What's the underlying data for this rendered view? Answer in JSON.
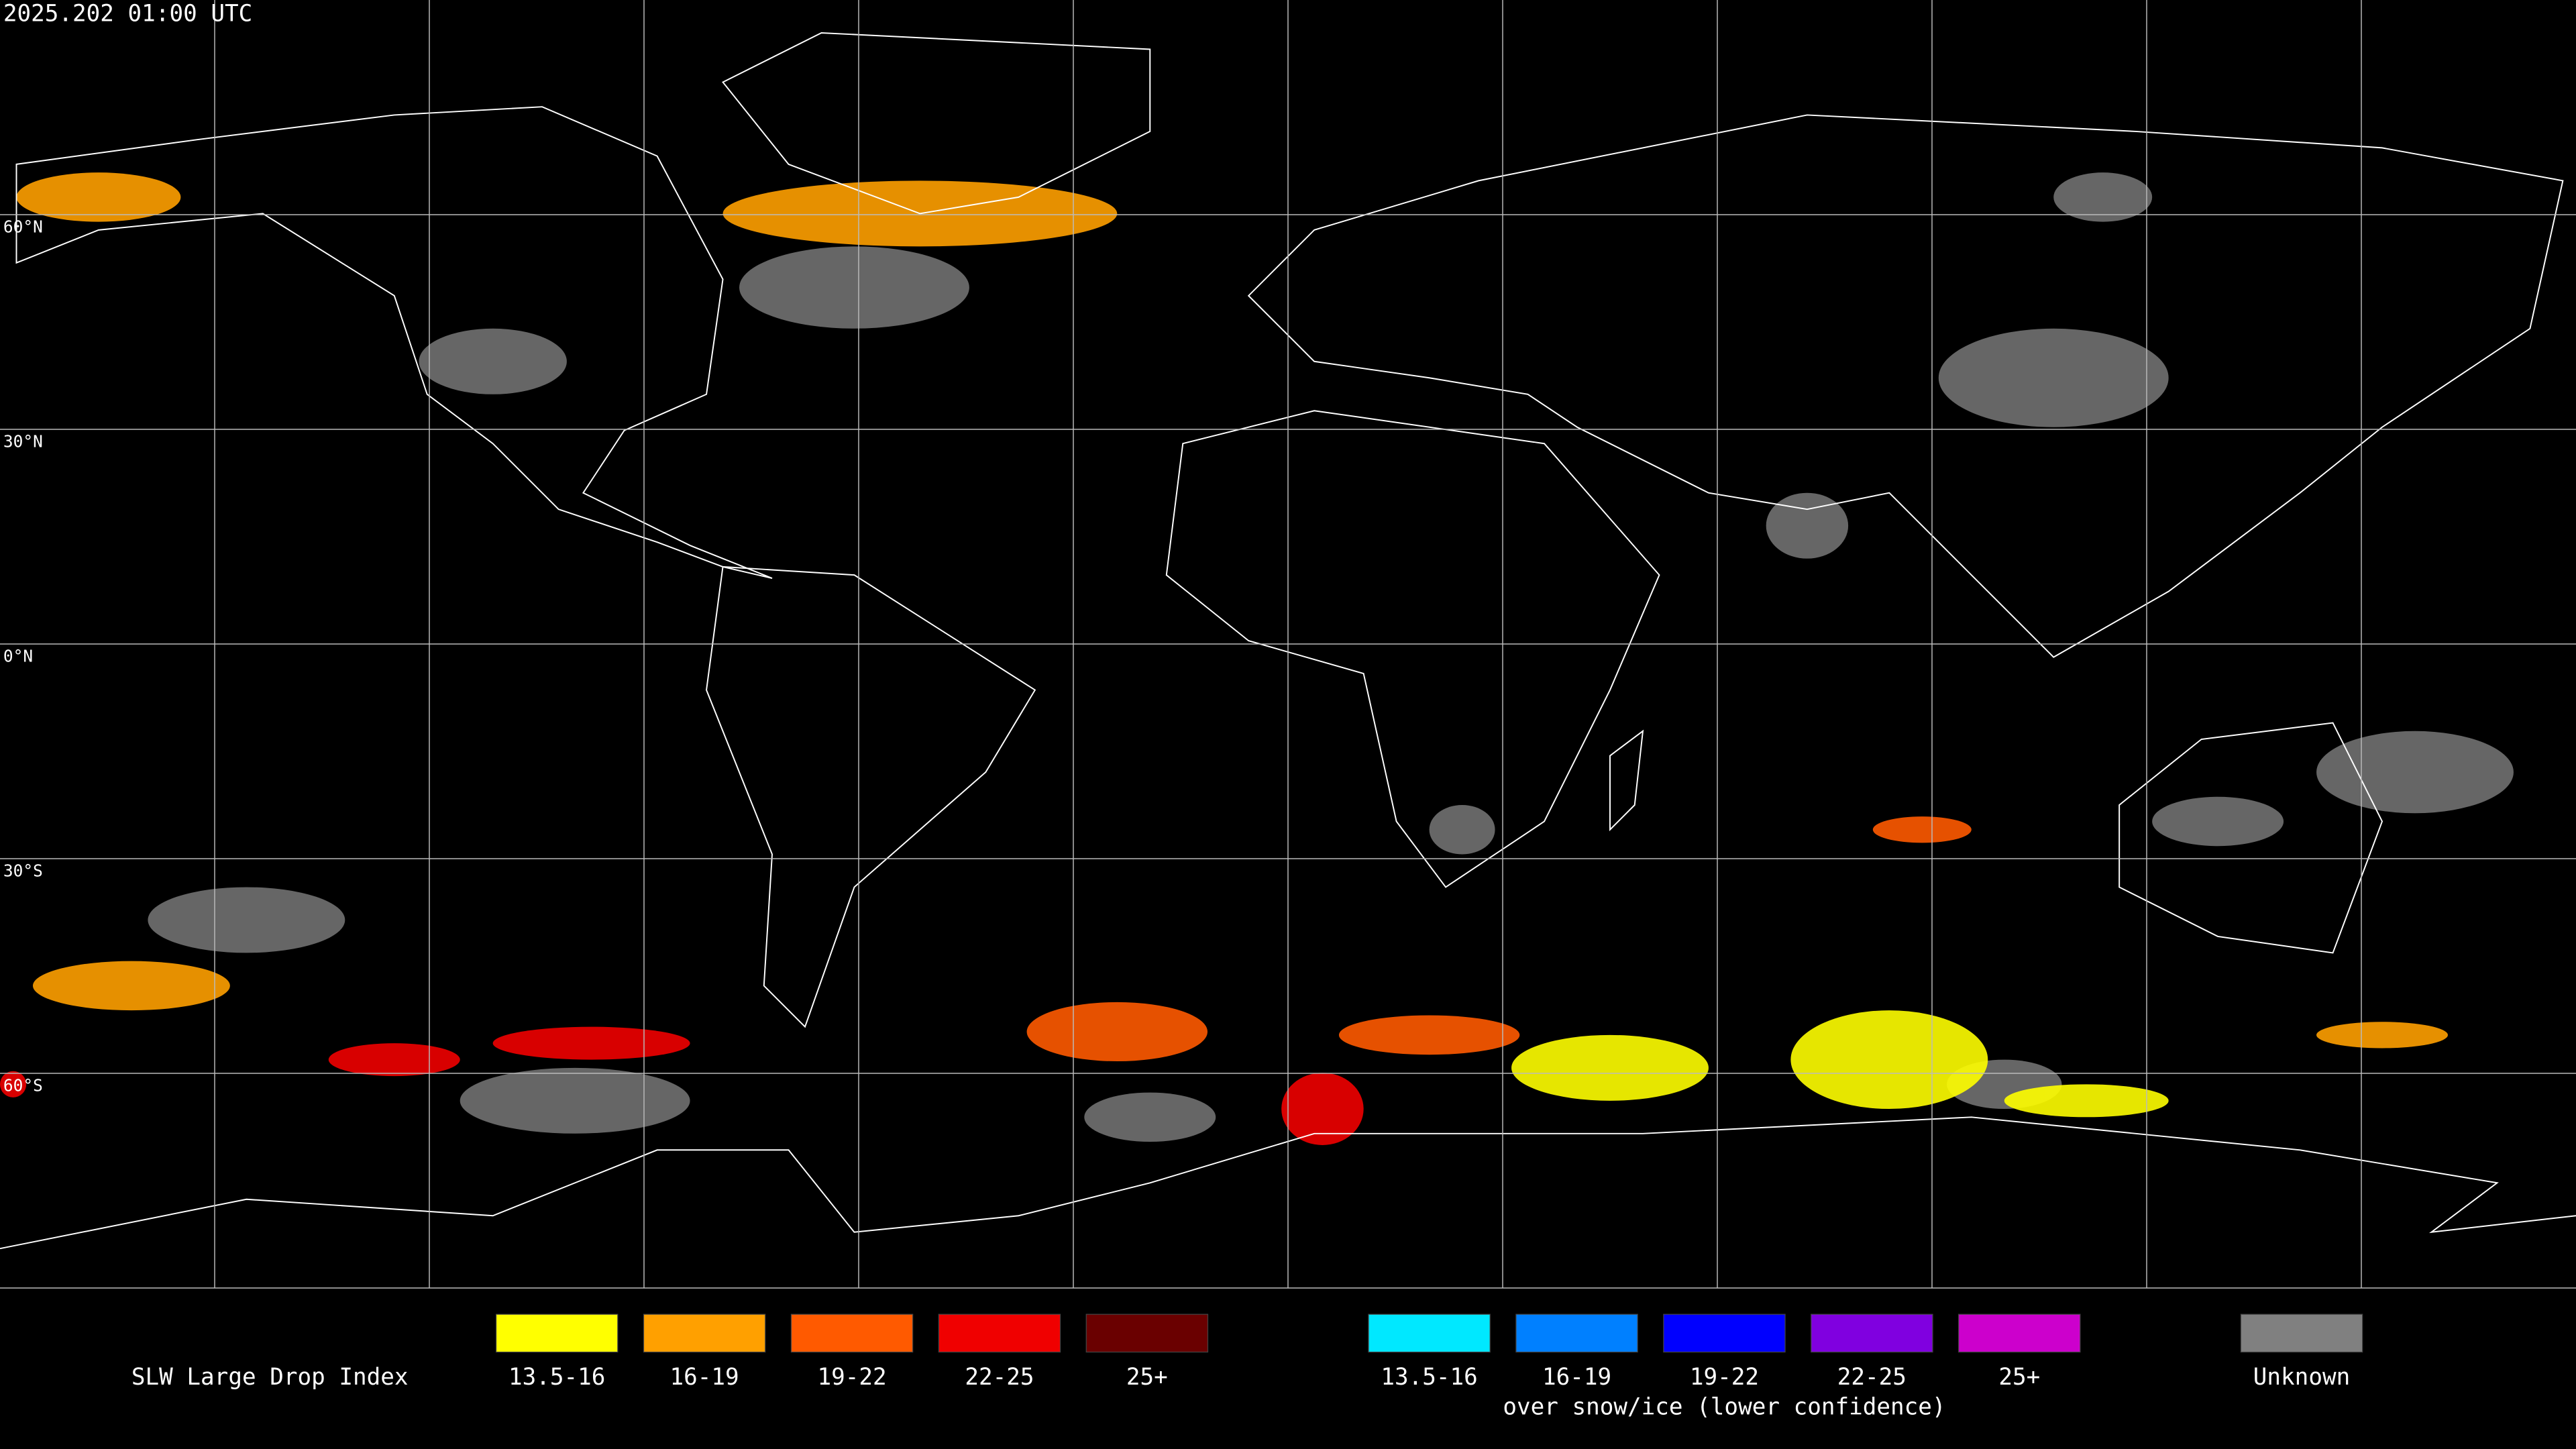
{
  "header": {
    "timestamp": "2025.202 01:00 UTC"
  },
  "map": {
    "latitude_labels": [
      "60°N",
      "30°N",
      "0°N",
      "30°S",
      "60°S"
    ]
  },
  "legend": {
    "title": "SLW Large Drop Index",
    "groups": [
      {
        "items": [
          {
            "label": "13.5-16",
            "color": "#ffff00"
          },
          {
            "label": "16-19",
            "color": "#ffa000"
          },
          {
            "label": "19-22",
            "color": "#ff5a00"
          },
          {
            "label": "22-25",
            "color": "#f00000"
          },
          {
            "label": "25+",
            "color": "#6a0000"
          }
        ]
      },
      {
        "items": [
          {
            "label": "13.5-16",
            "color": "#00e8ff"
          },
          {
            "label": "16-19",
            "color": "#0080ff"
          },
          {
            "label": "19-22",
            "color": "#0000ff"
          },
          {
            "label": "22-25",
            "color": "#8000e0"
          },
          {
            "label": "25+",
            "color": "#cc00cc"
          }
        ],
        "caption": "over snow/ice (lower confidence)"
      },
      {
        "items": [
          {
            "label": "Unknown",
            "color": "#808080"
          }
        ]
      }
    ]
  }
}
